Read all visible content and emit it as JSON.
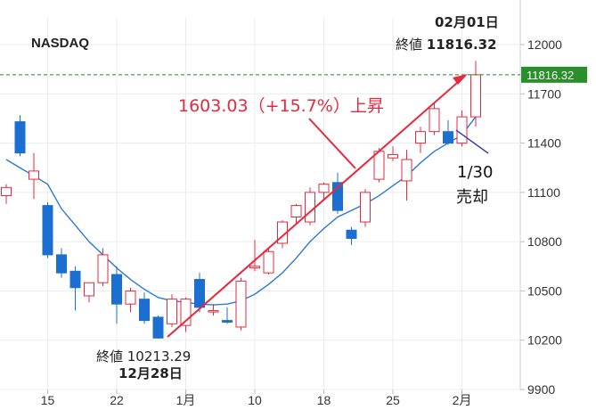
{
  "chart_data": {
    "type": "candlestick",
    "title": "NASDAQ",
    "y_ticks": [
      12000,
      11700,
      11400,
      11100,
      10800,
      10500,
      10200,
      9900
    ],
    "ylim": [
      9900,
      12150
    ],
    "x_tick_labels": [
      {
        "label": "15",
        "index": 3
      },
      {
        "label": "22",
        "index": 8
      },
      {
        "label": "1月",
        "index": 13
      },
      {
        "label": "10",
        "index": 18
      },
      {
        "label": "18",
        "index": 23
      },
      {
        "label": "25",
        "index": 28
      },
      {
        "label": "2月",
        "index": 33
      }
    ],
    "candles": [
      {
        "o": 11080,
        "h": 11150,
        "l": 11030,
        "c": 11130
      },
      {
        "o": 11530,
        "h": 11570,
        "l": 11320,
        "c": 11340
      },
      {
        "o": 11180,
        "h": 11340,
        "l": 11060,
        "c": 11230
      },
      {
        "o": 11020,
        "h": 11040,
        "l": 10700,
        "c": 10720
      },
      {
        "o": 10720,
        "h": 10760,
        "l": 10580,
        "c": 10610
      },
      {
        "o": 10620,
        "h": 10650,
        "l": 10380,
        "c": 10520
      },
      {
        "o": 10470,
        "h": 10550,
        "l": 10430,
        "c": 10550
      },
      {
        "o": 10550,
        "h": 10760,
        "l": 10530,
        "c": 10720
      },
      {
        "o": 10600,
        "h": 10650,
        "l": 10300,
        "c": 10420
      },
      {
        "o": 10420,
        "h": 10520,
        "l": 10370,
        "c": 10500
      },
      {
        "o": 10450,
        "h": 10490,
        "l": 10300,
        "c": 10320
      },
      {
        "o": 10340,
        "h": 10350,
        "l": 10210,
        "c": 10213.29
      },
      {
        "o": 10300,
        "h": 10480,
        "l": 10280,
        "c": 10450
      },
      {
        "o": 10290,
        "h": 10460,
        "l": 10250,
        "c": 10450
      },
      {
        "o": 10570,
        "h": 10610,
        "l": 10370,
        "c": 10400
      },
      {
        "o": 10380,
        "h": 10420,
        "l": 10350,
        "c": 10380
      },
      {
        "o": 10320,
        "h": 10400,
        "l": 10300,
        "c": 10310
      },
      {
        "o": 10280,
        "h": 10580,
        "l": 10260,
        "c": 10560
      },
      {
        "o": 10640,
        "h": 10810,
        "l": 10620,
        "c": 10650
      },
      {
        "o": 10610,
        "h": 10760,
        "l": 10600,
        "c": 10740
      },
      {
        "o": 10790,
        "h": 10930,
        "l": 10760,
        "c": 10920
      },
      {
        "o": 10950,
        "h": 11030,
        "l": 10910,
        "c": 11020
      },
      {
        "o": 10920,
        "h": 11130,
        "l": 10900,
        "c": 11100
      },
      {
        "o": 11100,
        "h": 11160,
        "l": 11050,
        "c": 11150
      },
      {
        "o": 11160,
        "h": 11220,
        "l": 10970,
        "c": 10990
      },
      {
        "o": 10870,
        "h": 10890,
        "l": 10780,
        "c": 10820
      },
      {
        "o": 10920,
        "h": 11120,
        "l": 10890,
        "c": 11100
      },
      {
        "o": 11180,
        "h": 11370,
        "l": 11160,
        "c": 11350
      },
      {
        "o": 11310,
        "h": 11380,
        "l": 11290,
        "c": 11330
      },
      {
        "o": 11170,
        "h": 11360,
        "l": 11050,
        "c": 11300
      },
      {
        "o": 11400,
        "h": 11500,
        "l": 11340,
        "c": 11470
      },
      {
        "o": 11470,
        "h": 11650,
        "l": 11450,
        "c": 11610
      },
      {
        "o": 11470,
        "h": 11540,
        "l": 11390,
        "c": 11400
      },
      {
        "o": 11400,
        "h": 11600,
        "l": 11380,
        "c": 11560
      },
      {
        "o": 11560,
        "h": 11900,
        "l": 11500,
        "c": 11816.32
      }
    ],
    "moving_average": [
      11300,
      11250,
      11200,
      11150,
      11000,
      10900,
      10800,
      10720,
      10640,
      10570,
      10510,
      10460,
      10440,
      10430,
      10420,
      10415,
      10420,
      10440,
      10480,
      10540,
      10610,
      10700,
      10800,
      10880,
      10950,
      10990,
      11030,
      11080,
      11140,
      11200,
      11280,
      11350,
      11400,
      11450,
      11560
    ],
    "current_price_label": "11816.32",
    "current_price": 11816.32
  },
  "annotations": {
    "start_close_label": "終値 10213.29",
    "start_date_label": "12月28日",
    "end_date_label": "02月01日",
    "end_close_prefix": "終値 ",
    "end_close_value": "11816.32",
    "gain_label": "1603.03（+15.7%）上昇",
    "sell_line1": "1/30",
    "sell_line2": "売却"
  },
  "colors": {
    "up": "#e8283c",
    "down": "#1a6fd1",
    "ma_line": "#2b78d8",
    "arrow": "#e8283c",
    "price_line": "#1d8a22",
    "price_tag": "#2a8f2a",
    "sell_line": "#3a46b4"
  }
}
